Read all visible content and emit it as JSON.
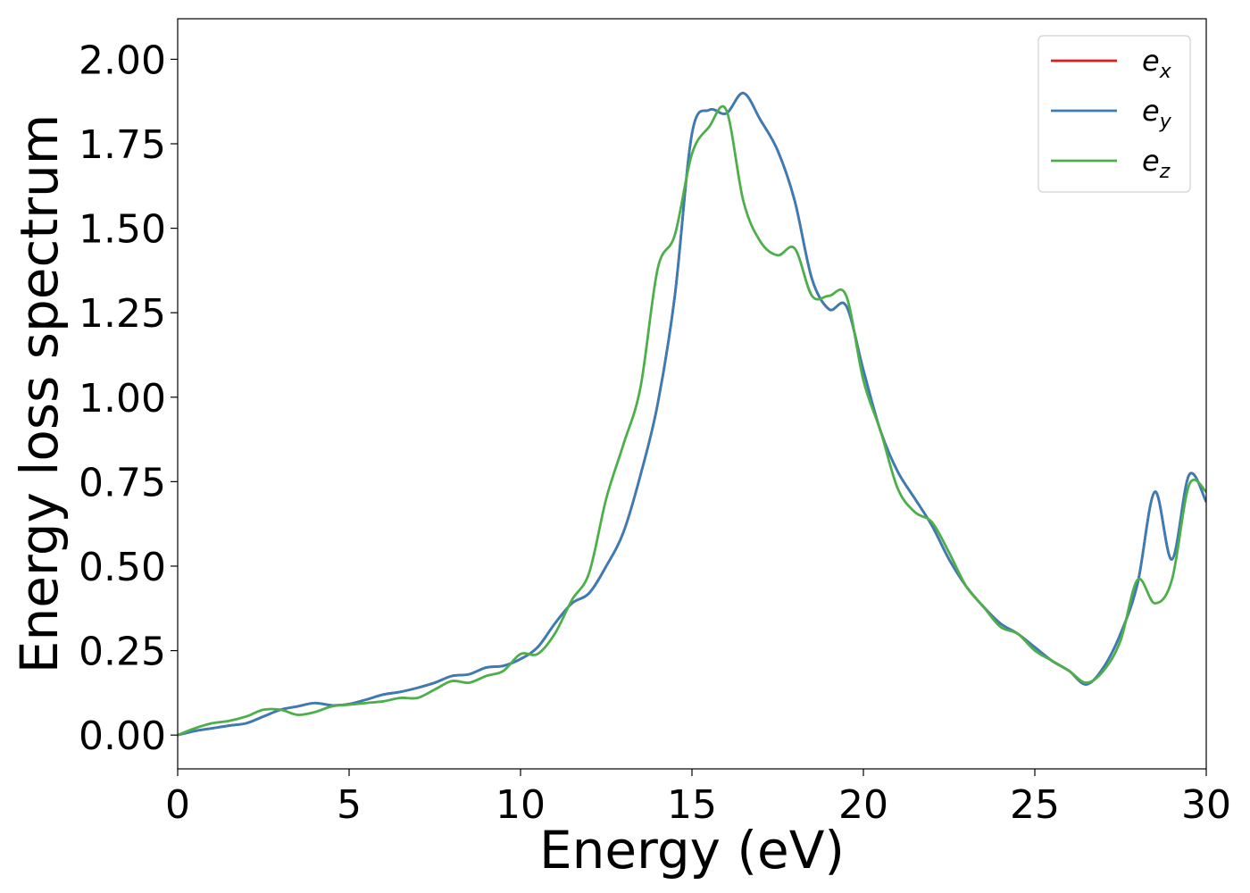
{
  "chart_data": {
    "type": "line",
    "title": "",
    "xlabel": "Energy (eV)",
    "ylabel": "Energy loss spectrum",
    "xlim": [
      0,
      30
    ],
    "ylim": [
      -0.1,
      2.12
    ],
    "xticks": [
      0,
      5,
      10,
      15,
      20,
      25,
      30
    ],
    "yticks": [
      0.0,
      0.25,
      0.5,
      0.75,
      1.0,
      1.25,
      1.5,
      1.75,
      2.0
    ],
    "ytick_format": "2dp",
    "grid": false,
    "legend_position": "top-right",
    "series": [
      {
        "name": "e_x",
        "label_base": "e",
        "label_sub": "x",
        "color": "#e41a1c",
        "x": [
          0,
          0.5,
          1,
          1.5,
          2,
          2.5,
          3,
          3.5,
          4,
          4.5,
          5,
          5.5,
          6,
          6.5,
          7,
          7.5,
          8,
          8.5,
          9,
          9.5,
          10,
          10.5,
          11,
          11.5,
          12,
          12.5,
          13,
          13.5,
          14,
          14.5,
          15,
          15.5,
          16,
          16.5,
          17,
          17.5,
          18,
          18.5,
          19,
          19.5,
          20,
          20.5,
          21,
          21.5,
          22,
          22.5,
          23,
          23.5,
          24,
          24.5,
          25,
          25.5,
          26,
          26.5,
          27,
          27.5,
          28,
          28.5,
          29,
          29.5,
          30
        ],
        "y": [
          0,
          0.012,
          0.02,
          0.028,
          0.035,
          0.055,
          0.075,
          0.085,
          0.095,
          0.088,
          0.092,
          0.105,
          0.12,
          0.128,
          0.14,
          0.155,
          0.175,
          0.18,
          0.2,
          0.205,
          0.225,
          0.26,
          0.33,
          0.39,
          0.42,
          0.5,
          0.6,
          0.77,
          0.98,
          1.3,
          1.78,
          1.85,
          1.84,
          1.9,
          1.82,
          1.73,
          1.58,
          1.35,
          1.26,
          1.27,
          1.08,
          0.9,
          0.78,
          0.7,
          0.62,
          0.52,
          0.44,
          0.38,
          0.33,
          0.3,
          0.26,
          0.22,
          0.19,
          0.15,
          0.2,
          0.3,
          0.45,
          0.72,
          0.52,
          0.77,
          0.69
        ]
      },
      {
        "name": "e_y",
        "label_base": "e",
        "label_sub": "y",
        "color": "#377eb8",
        "x": [
          0,
          0.5,
          1,
          1.5,
          2,
          2.5,
          3,
          3.5,
          4,
          4.5,
          5,
          5.5,
          6,
          6.5,
          7,
          7.5,
          8,
          8.5,
          9,
          9.5,
          10,
          10.5,
          11,
          11.5,
          12,
          12.5,
          13,
          13.5,
          14,
          14.5,
          15,
          15.5,
          16,
          16.5,
          17,
          17.5,
          18,
          18.5,
          19,
          19.5,
          20,
          20.5,
          21,
          21.5,
          22,
          22.5,
          23,
          23.5,
          24,
          24.5,
          25,
          25.5,
          26,
          26.5,
          27,
          27.5,
          28,
          28.5,
          29,
          29.5,
          30
        ],
        "y": [
          0,
          0.012,
          0.02,
          0.028,
          0.035,
          0.055,
          0.075,
          0.085,
          0.095,
          0.088,
          0.092,
          0.105,
          0.12,
          0.128,
          0.14,
          0.155,
          0.175,
          0.18,
          0.2,
          0.205,
          0.225,
          0.26,
          0.33,
          0.39,
          0.42,
          0.5,
          0.6,
          0.77,
          0.98,
          1.3,
          1.78,
          1.85,
          1.84,
          1.9,
          1.82,
          1.73,
          1.58,
          1.35,
          1.26,
          1.27,
          1.08,
          0.9,
          0.78,
          0.7,
          0.62,
          0.52,
          0.44,
          0.38,
          0.33,
          0.3,
          0.26,
          0.22,
          0.19,
          0.15,
          0.2,
          0.3,
          0.45,
          0.72,
          0.52,
          0.77,
          0.69
        ]
      },
      {
        "name": "e_z",
        "label_base": "e",
        "label_sub": "z",
        "color": "#4daf4a",
        "x": [
          0,
          0.5,
          1,
          1.5,
          2,
          2.5,
          3,
          3.5,
          4,
          4.5,
          5,
          5.5,
          6,
          6.5,
          7,
          7.5,
          8,
          8.5,
          9,
          9.5,
          10,
          10.5,
          11,
          11.5,
          12,
          12.5,
          13,
          13.5,
          14,
          14.5,
          15,
          15.5,
          16,
          16.5,
          17,
          17.5,
          18,
          18.5,
          19,
          19.5,
          20,
          20.5,
          21,
          21.5,
          22,
          22.5,
          23,
          23.5,
          24,
          24.5,
          25,
          25.5,
          26,
          26.5,
          27,
          27.5,
          28,
          28.5,
          29,
          29.5,
          30
        ],
        "y": [
          0,
          0.02,
          0.035,
          0.042,
          0.055,
          0.075,
          0.075,
          0.06,
          0.068,
          0.085,
          0.09,
          0.095,
          0.1,
          0.11,
          0.11,
          0.135,
          0.16,
          0.155,
          0.175,
          0.19,
          0.24,
          0.24,
          0.3,
          0.4,
          0.48,
          0.7,
          0.86,
          1.03,
          1.38,
          1.48,
          1.72,
          1.8,
          1.85,
          1.58,
          1.46,
          1.42,
          1.44,
          1.3,
          1.3,
          1.3,
          1.05,
          0.9,
          0.73,
          0.66,
          0.63,
          0.54,
          0.44,
          0.38,
          0.32,
          0.3,
          0.25,
          0.22,
          0.19,
          0.155,
          0.19,
          0.28,
          0.46,
          0.39,
          0.46,
          0.74,
          0.72
        ]
      }
    ]
  }
}
